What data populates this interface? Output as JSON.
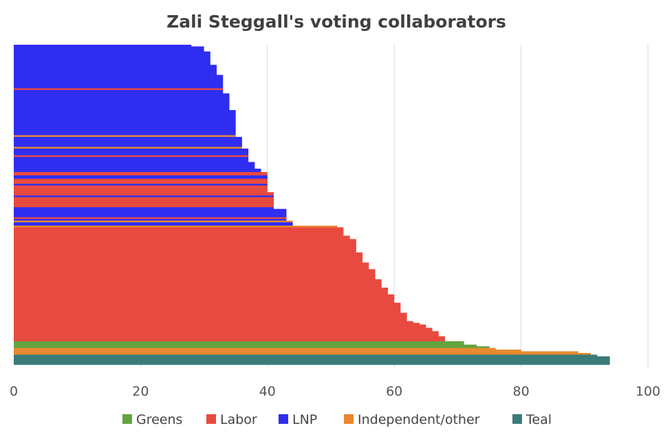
{
  "chart_data": {
    "type": "bar",
    "orientation": "horizontal",
    "title": "Zali Steggall's voting collaborators",
    "xlabel": "",
    "ylabel": "",
    "xlim": [
      0,
      100
    ],
    "xticks": [
      "0",
      "20",
      "40",
      "60",
      "80",
      "100"
    ],
    "grid": true,
    "legend_position": "bottom",
    "legend": [
      {
        "name": "Greens",
        "color": "#62a33f"
      },
      {
        "name": "Labor",
        "color": "#e84a3f"
      },
      {
        "name": "LNP",
        "color": "#2f2ef0"
      },
      {
        "name": "Independent/other",
        "color": "#e8892f"
      },
      {
        "name": "Teal",
        "color": "#3a7b7a"
      }
    ],
    "runs_note": "bars listed top to bottom; n = number of adjacent members with same party and value",
    "runs": [
      {
        "party": "LNP",
        "value": 28,
        "n": 1
      },
      {
        "party": "LNP",
        "value": 30,
        "n": 3
      },
      {
        "party": "LNP",
        "value": 31,
        "n": 8
      },
      {
        "party": "LNP",
        "value": 32,
        "n": 6
      },
      {
        "party": "LNP",
        "value": 33,
        "n": 8
      },
      {
        "party": "Labor",
        "value": 33,
        "n": 1
      },
      {
        "party": "LNP",
        "value": 33,
        "n": 2
      },
      {
        "party": "LNP",
        "value": 34,
        "n": 10
      },
      {
        "party": "LNP",
        "value": 35,
        "n": 15
      },
      {
        "party": "Independent/other",
        "value": 35,
        "n": 1
      },
      {
        "party": "LNP",
        "value": 36,
        "n": 6
      },
      {
        "party": "Independent/other",
        "value": 36,
        "n": 1
      },
      {
        "party": "LNP",
        "value": 37,
        "n": 4
      },
      {
        "party": "Labor",
        "value": 37,
        "n": 1
      },
      {
        "party": "LNP",
        "value": 37,
        "n": 3
      },
      {
        "party": "LNP",
        "value": 38,
        "n": 4
      },
      {
        "party": "LNP",
        "value": 39,
        "n": 2
      },
      {
        "party": "Labor",
        "value": 40,
        "n": 2
      },
      {
        "party": "LNP",
        "value": 40,
        "n": 2
      },
      {
        "party": "Labor",
        "value": 40,
        "n": 3
      },
      {
        "party": "LNP",
        "value": 40,
        "n": 1
      },
      {
        "party": "Labor",
        "value": 40,
        "n": 4
      },
      {
        "party": "Labor",
        "value": 41,
        "n": 2
      },
      {
        "party": "LNP",
        "value": 41,
        "n": 1
      },
      {
        "party": "Labor",
        "value": 41,
        "n": 6
      },
      {
        "party": "LNP",
        "value": 41,
        "n": 1
      },
      {
        "party": "LNP",
        "value": 43,
        "n": 5
      },
      {
        "party": "Labor",
        "value": 43,
        "n": 1
      },
      {
        "party": "LNP",
        "value": 43,
        "n": 1
      },
      {
        "party": "Independent/other",
        "value": 44,
        "n": 1
      },
      {
        "party": "LNP",
        "value": 44,
        "n": 2
      },
      {
        "party": "Independent/other",
        "value": 51,
        "n": 1
      },
      {
        "party": "Labor",
        "value": 52,
        "n": 5
      },
      {
        "party": "Labor",
        "value": 53,
        "n": 2
      },
      {
        "party": "Labor",
        "value": 54,
        "n": 8
      },
      {
        "party": "Labor",
        "value": 55,
        "n": 6
      },
      {
        "party": "Labor",
        "value": 56,
        "n": 4
      },
      {
        "party": "Labor",
        "value": 57,
        "n": 6
      },
      {
        "party": "Labor",
        "value": 58,
        "n": 5
      },
      {
        "party": "Labor",
        "value": 59,
        "n": 4
      },
      {
        "party": "Labor",
        "value": 60,
        "n": 5
      },
      {
        "party": "Labor",
        "value": 61,
        "n": 6
      },
      {
        "party": "Labor",
        "value": 62,
        "n": 5
      },
      {
        "party": "Labor",
        "value": 63,
        "n": 1
      },
      {
        "party": "Labor",
        "value": 64,
        "n": 1
      },
      {
        "party": "Labor",
        "value": 65,
        "n": 2
      },
      {
        "party": "Labor",
        "value": 66,
        "n": 2
      },
      {
        "party": "Labor",
        "value": 67,
        "n": 3
      },
      {
        "party": "Labor",
        "value": 68,
        "n": 3
      },
      {
        "party": "Greens",
        "value": 71,
        "n": 2
      },
      {
        "party": "Greens",
        "value": 73,
        "n": 1
      },
      {
        "party": "Greens",
        "value": 75,
        "n": 1
      },
      {
        "party": "Independent/other",
        "value": 76,
        "n": 1
      },
      {
        "party": "Independent/other",
        "value": 80,
        "n": 1
      },
      {
        "party": "Independent/other",
        "value": 89,
        "n": 1
      },
      {
        "party": "Independent/other",
        "value": 91,
        "n": 1
      },
      {
        "party": "Teal",
        "value": 92,
        "n": 1
      },
      {
        "party": "Teal",
        "value": 94,
        "n": 5
      }
    ]
  }
}
